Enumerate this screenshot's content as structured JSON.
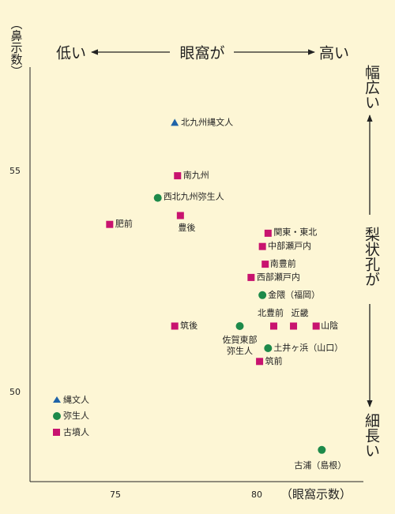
{
  "chart_data": {
    "type": "scatter",
    "title": "",
    "xlabel": "（眼窩示数）",
    "ylabel": "（鼻示数）",
    "x_ticks": [
      75,
      80
    ],
    "y_ticks": [
      55,
      50
    ],
    "top_annotation": {
      "left": "低い",
      "center": "眼窩が",
      "right": "高い"
    },
    "right_annotation": {
      "top": "幅広い",
      "middle": "梨状孔が",
      "bottom": "細長い"
    },
    "legend": [
      {
        "label": "縄文人",
        "marker": "triangle",
        "color": "#1f63a8"
      },
      {
        "label": "弥生人",
        "marker": "circle",
        "color": "#1d8a4a"
      },
      {
        "label": "古墳人",
        "marker": "square",
        "color": "#c8136f"
      }
    ],
    "points": [
      {
        "name": "北九州縄文人",
        "x": 77.1,
        "y": 56.1,
        "group": "縄文人"
      },
      {
        "name": "南九州",
        "x": 77.2,
        "y": 54.9,
        "group": "古墳人"
      },
      {
        "name": "西北九州弥生人",
        "x": 76.5,
        "y": 54.4,
        "group": "弥生人"
      },
      {
        "name": "肥前",
        "x": 74.8,
        "y": 53.8,
        "group": "古墳人"
      },
      {
        "name": "豊後",
        "x": 77.3,
        "y": 54.0,
        "group": "古墳人"
      },
      {
        "name": "関東・東北",
        "x": 80.4,
        "y": 53.6,
        "group": "古墳人"
      },
      {
        "name": "中部瀬戸内",
        "x": 80.2,
        "y": 53.3,
        "group": "古墳人"
      },
      {
        "name": "南豊前",
        "x": 80.3,
        "y": 52.9,
        "group": "古墳人"
      },
      {
        "name": "西部瀬戸内",
        "x": 79.8,
        "y": 52.6,
        "group": "古墳人"
      },
      {
        "name": "金隈（福岡）",
        "x": 80.2,
        "y": 52.2,
        "group": "弥生人"
      },
      {
        "name": "筑後",
        "x": 77.1,
        "y": 51.5,
        "group": "古墳人"
      },
      {
        "name": "佐賀東部弥生人",
        "x": 79.4,
        "y": 51.5,
        "group": "弥生人"
      },
      {
        "name": "北豊前",
        "x": 80.6,
        "y": 51.5,
        "group": "古墳人"
      },
      {
        "name": "近畿",
        "x": 81.3,
        "y": 51.5,
        "group": "古墳人"
      },
      {
        "name": "山陰",
        "x": 82.1,
        "y": 51.5,
        "group": "古墳人"
      },
      {
        "name": "土井ヶ浜（山口）",
        "x": 80.4,
        "y": 51.0,
        "group": "弥生人"
      },
      {
        "name": "筑前",
        "x": 80.1,
        "y": 50.7,
        "group": "古墳人"
      },
      {
        "name": "古浦（島根）",
        "x": 82.3,
        "y": 48.7,
        "group": "弥生人"
      }
    ]
  }
}
